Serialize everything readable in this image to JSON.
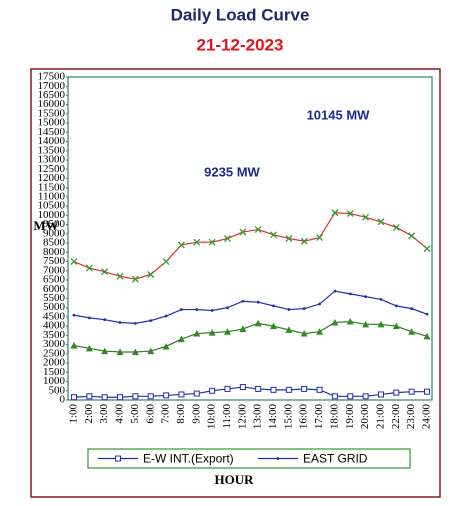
{
  "chart_data": {
    "type": "line",
    "title": "Daily Load Curve",
    "subtitle": "21-12-2023",
    "x_label": "HOUR",
    "y_label": "MW",
    "annotations": [
      "10145 MW",
      "9235 MW"
    ],
    "categories": [
      "1:00",
      "2:00",
      "3:00",
      "4:00",
      "5:00",
      "6:00",
      "7:00",
      "8:00",
      "9:00",
      "10:00",
      "11:00",
      "12:00",
      "13:00",
      "14:00",
      "15:00",
      "16:00",
      "17:00",
      "18:00",
      "19:00",
      "20:00",
      "21:00",
      "22:00",
      "23:00",
      "24:00"
    ],
    "ylim": [
      0,
      17500
    ],
    "yticks": [
      0,
      500,
      1000,
      1500,
      2000,
      2500,
      3000,
      3500,
      4000,
      4500,
      5000,
      5500,
      6000,
      6500,
      7000,
      7500,
      8000,
      8500,
      9000,
      9500,
      10000,
      10500,
      11000,
      11500,
      12000,
      12500,
      13000,
      13500,
      14000,
      14500,
      15000,
      15500,
      16000,
      16500,
      17000,
      17500
    ],
    "series": [
      {
        "name": "E-W INT.(Export)",
        "color": "#1f2fb0",
        "marker": "square",
        "marker_color": "#1f2fb0",
        "values": [
          150,
          200,
          150,
          150,
          200,
          200,
          250,
          300,
          350,
          500,
          600,
          700,
          600,
          550,
          550,
          600,
          550,
          200,
          200,
          200,
          300,
          400,
          450,
          450
        ]
      },
      {
        "name": "EAST GRID",
        "color": "#1f2fb0",
        "marker": "dot",
        "marker_color": "#1f2fb0",
        "values": [
          4600,
          4450,
          4350,
          4200,
          4150,
          4300,
          4550,
          4900,
          4900,
          4850,
          5000,
          5350,
          5300,
          5100,
          4900,
          4950,
          5200,
          5900,
          5750,
          5600,
          5450,
          5100,
          4950,
          4650
        ]
      },
      {
        "color": "#e0302a",
        "marker": "x",
        "marker_color": "#2e9a2e",
        "values": [
          7500,
          7150,
          6950,
          6700,
          6550,
          6800,
          7500,
          8400,
          8550,
          8550,
          8750,
          9100,
          9235,
          8950,
          8750,
          8600,
          8800,
          10145,
          10100,
          9900,
          9650,
          9350,
          8900,
          8200
        ]
      },
      {
        "color": "#2e7d1e",
        "marker": "triangle",
        "marker_color": "#2e8b1e",
        "values": [
          2950,
          2800,
          2650,
          2600,
          2600,
          2650,
          2900,
          3300,
          3600,
          3650,
          3700,
          3850,
          4150,
          4000,
          3800,
          3600,
          3700,
          4200,
          4250,
          4100,
          4100,
          4000,
          3700,
          3450
        ]
      }
    ]
  }
}
